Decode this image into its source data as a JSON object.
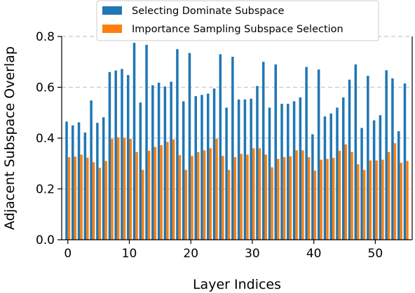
{
  "chart_data": {
    "type": "bar",
    "xlabel": "Layer Indices",
    "ylabel": "Adjacent Subspace Overlap",
    "xlim": [
      -1,
      56
    ],
    "ylim": [
      0,
      0.8
    ],
    "xticks": [
      0,
      10,
      20,
      30,
      40,
      50
    ],
    "yticks": [
      0.0,
      0.2,
      0.4,
      0.6,
      0.8
    ],
    "ytick_labels": [
      "0.0",
      "0.2",
      "0.4",
      "0.6",
      "0.8"
    ],
    "grid": "horizontal dashed",
    "legend_position": "top",
    "x": [
      0,
      1,
      2,
      3,
      4,
      5,
      6,
      7,
      8,
      9,
      10,
      11,
      12,
      13,
      14,
      15,
      16,
      17,
      18,
      19,
      20,
      21,
      22,
      23,
      24,
      25,
      26,
      27,
      28,
      29,
      30,
      31,
      32,
      33,
      34,
      35,
      36,
      37,
      38,
      39,
      40,
      41,
      42,
      43,
      44,
      45,
      46,
      47,
      48,
      49,
      50,
      51,
      52,
      53,
      54,
      55
    ],
    "series": [
      {
        "name": "Selecting Dominate Subspace",
        "color": "#1f77b4",
        "values": [
          0.465,
          0.45,
          0.462,
          0.422,
          0.548,
          0.46,
          0.482,
          0.66,
          0.666,
          0.672,
          0.648,
          0.775,
          0.54,
          0.767,
          0.608,
          0.618,
          0.603,
          0.622,
          0.75,
          0.545,
          0.735,
          0.565,
          0.57,
          0.575,
          0.595,
          0.73,
          0.52,
          0.72,
          0.552,
          0.552,
          0.555,
          0.605,
          0.7,
          0.52,
          0.69,
          0.535,
          0.535,
          0.545,
          0.56,
          0.68,
          0.415,
          0.67,
          0.485,
          0.497,
          0.52,
          0.56,
          0.63,
          0.69,
          0.44,
          0.645,
          0.47,
          0.49,
          0.667,
          0.635,
          0.427,
          0.615
        ]
      },
      {
        "name": "Importance Sampling Subspace Selection",
        "color": "#ff7f0e",
        "values": [
          0.325,
          0.327,
          0.335,
          0.323,
          0.305,
          0.283,
          0.31,
          0.397,
          0.403,
          0.401,
          0.397,
          0.345,
          0.275,
          0.35,
          0.365,
          0.372,
          0.385,
          0.395,
          0.333,
          0.275,
          0.33,
          0.345,
          0.352,
          0.36,
          0.397,
          0.33,
          0.275,
          0.325,
          0.338,
          0.335,
          0.36,
          0.36,
          0.335,
          0.285,
          0.318,
          0.325,
          0.328,
          0.352,
          0.352,
          0.325,
          0.272,
          0.315,
          0.318,
          0.322,
          0.35,
          0.375,
          0.345,
          0.297,
          0.275,
          0.312,
          0.312,
          0.315,
          0.345,
          0.38,
          0.303,
          0.31
        ]
      }
    ]
  }
}
